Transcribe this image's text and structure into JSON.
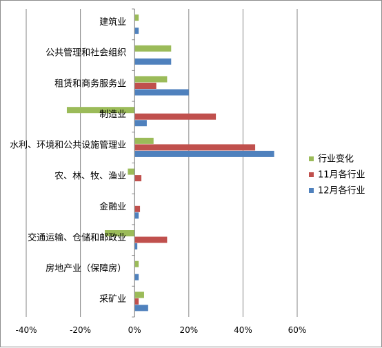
{
  "chart_data": {
    "type": "bar",
    "orientation": "horizontal",
    "categories": [
      "建筑业",
      "公共管理和社会组织",
      "租赁和商务服务业",
      "制造业",
      "水利、环境和公共设施管理业",
      "农、林、牧、渔业",
      "金融业",
      "交通运输、仓储和邮政业",
      "房地产业（保障房）",
      "采矿业"
    ],
    "series": [
      {
        "name": "行业变化",
        "color": "#9bbb59",
        "values": [
          1.5,
          13.5,
          12.0,
          -25.0,
          7.0,
          -2.5,
          0.0,
          -11.0,
          1.5,
          3.5
        ]
      },
      {
        "name": "11月各行业",
        "color": "#c0504d",
        "values": [
          0.0,
          0.0,
          8.0,
          30.0,
          44.5,
          2.5,
          2.0,
          12.0,
          0.0,
          1.5
        ]
      },
      {
        "name": "12月各行业",
        "color": "#4f81bd",
        "values": [
          1.5,
          13.5,
          20.0,
          4.5,
          51.5,
          0.0,
          1.5,
          1.0,
          1.5,
          5.0
        ]
      }
    ],
    "xlim": [
      -40,
      60
    ],
    "xticks": [
      -40,
      -20,
      0,
      20,
      40,
      60
    ],
    "xtick_labels": [
      "-40%",
      "-20%",
      "0%",
      "20%",
      "40%",
      "60%"
    ],
    "grid": "vertical",
    "legend_position": "right"
  }
}
